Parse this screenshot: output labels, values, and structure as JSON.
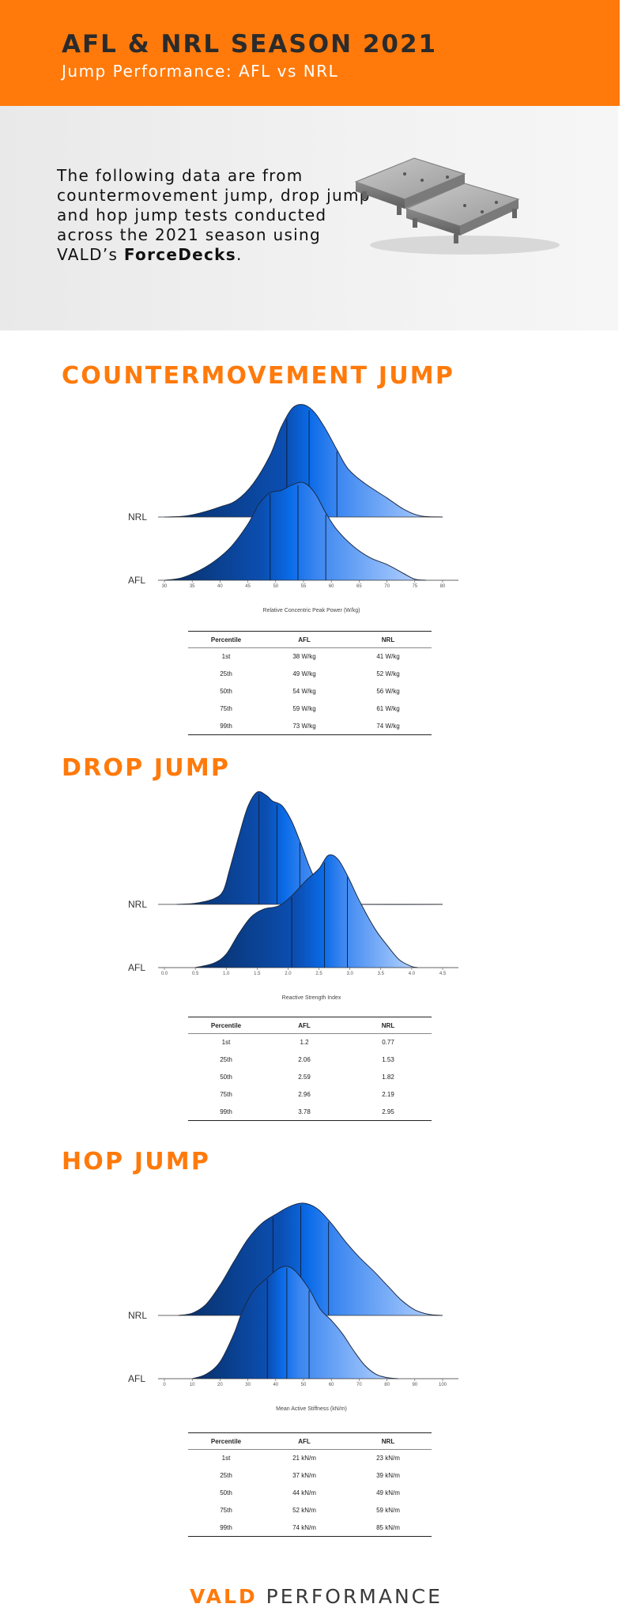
{
  "header": {
    "title": "AFL & NRL SEASON 2021",
    "subtitle": "Jump Performance: AFL vs NRL"
  },
  "intro": {
    "text": "The following data are from countermovement jump, drop jump and hop jump tests conducted across the 2021 season using VALD’s ",
    "brand": "ForceDecks",
    "end": ".",
    "image": "forcedecks-plates-image"
  },
  "colors": {
    "accent": "#ff7a0b",
    "dark_blue": "#0a2f66",
    "mid_blue": "#0a6be8",
    "light_blue": "#bcd6ff"
  },
  "table_headers": {
    "percentile": "Percentile",
    "afl": "AFL",
    "nrl": "NRL"
  },
  "sections": [
    {
      "title": "COUNTERMOVEMENT JUMP",
      "xlabel": "Relative Concentric Peak Power (W/kg)",
      "rows": [
        {
          "p": "1st",
          "afl": "38 W/kg",
          "nrl": "41 W/kg"
        },
        {
          "p": "25th",
          "afl": "49 W/kg",
          "nrl": "52 W/kg"
        },
        {
          "p": "50th",
          "afl": "54 W/kg",
          "nrl": "56 W/kg"
        },
        {
          "p": "75th",
          "afl": "59 W/kg",
          "nrl": "61 W/kg"
        },
        {
          "p": "99th",
          "afl": "73 W/kg",
          "nrl": "74 W/kg"
        }
      ]
    },
    {
      "title": "DROP JUMP",
      "xlabel": "Reactive Strength Index",
      "rows": [
        {
          "p": "1st",
          "afl": "1.2",
          "nrl": "0.77"
        },
        {
          "p": "25th",
          "afl": "2.06",
          "nrl": "1.53"
        },
        {
          "p": "50th",
          "afl": "2.59",
          "nrl": "1.82"
        },
        {
          "p": "75th",
          "afl": "2.96",
          "nrl": "2.19"
        },
        {
          "p": "99th",
          "afl": "3.78",
          "nrl": "2.95"
        }
      ]
    },
    {
      "title": "HOP JUMP",
      "xlabel": "Mean Active Stiffness (kN/m)",
      "rows": [
        {
          "p": "1st",
          "afl": "21 kN/m",
          "nrl": "23 kN/m"
        },
        {
          "p": "25th",
          "afl": "37 kN/m",
          "nrl": "39 kN/m"
        },
        {
          "p": "50th",
          "afl": "44 kN/m",
          "nrl": "49 kN/m"
        },
        {
          "p": "75th",
          "afl": "52 kN/m",
          "nrl": "59 kN/m"
        },
        {
          "p": "99th",
          "afl": "74 kN/m",
          "nrl": "85 kN/m"
        }
      ]
    }
  ],
  "footer": {
    "vald": "VALD",
    "performance": "PERFORMANCE"
  },
  "chart_data": [
    {
      "type": "ridgeline",
      "xlabel": "Relative Concentric Peak Power (W/kg)",
      "xlim": [
        30,
        80
      ],
      "xticks": [
        "30",
        "35",
        "40",
        "45",
        "50",
        "55",
        "60",
        "65",
        "70",
        "75",
        "80"
      ],
      "series": [
        {
          "name": "NRL",
          "range": [
            30,
            80
          ],
          "points": [
            [
              30,
              0
            ],
            [
              33,
              0.005
            ],
            [
              36,
              0.03
            ],
            [
              40,
              0.09
            ],
            [
              43,
              0.15
            ],
            [
              46,
              0.3
            ],
            [
              49,
              0.55
            ],
            [
              51,
              0.8
            ],
            [
              53,
              0.97
            ],
            [
              55,
              1
            ],
            [
              57,
              0.93
            ],
            [
              59,
              0.78
            ],
            [
              61,
              0.6
            ],
            [
              63,
              0.43
            ],
            [
              66,
              0.3
            ],
            [
              70,
              0.17
            ],
            [
              73,
              0.07
            ],
            [
              76,
              0.01
            ],
            [
              80,
              0
            ]
          ],
          "quartiles": [
            52,
            56,
            61
          ]
        },
        {
          "name": "AFL",
          "range": [
            30,
            80
          ],
          "points": [
            [
              30,
              0
            ],
            [
              33,
              0.02
            ],
            [
              36,
              0.08
            ],
            [
              39,
              0.17
            ],
            [
              42,
              0.3
            ],
            [
              45,
              0.5
            ],
            [
              47,
              0.68
            ],
            [
              49,
              0.78
            ],
            [
              51,
              0.8
            ],
            [
              53,
              0.85
            ],
            [
              55,
              0.87
            ],
            [
              57,
              0.78
            ],
            [
              59,
              0.6
            ],
            [
              61,
              0.45
            ],
            [
              64,
              0.3
            ],
            [
              67,
              0.2
            ],
            [
              70,
              0.14
            ],
            [
              73,
              0.06
            ],
            [
              75,
              0.01
            ],
            [
              77,
              0
            ]
          ],
          "quartiles": [
            49,
            54,
            59
          ]
        }
      ]
    },
    {
      "type": "ridgeline",
      "xlabel": "Reactive Strength Index",
      "xlim": [
        0,
        4.5
      ],
      "xticks": [
        "0.0",
        "0.5",
        "1.0",
        "1.5",
        "2.0",
        "2.5",
        "3.0",
        "3.5",
        "4.0",
        "4.5"
      ],
      "series": [
        {
          "name": "NRL",
          "range": [
            0,
            4.5
          ],
          "points": [
            [
              0.2,
              0
            ],
            [
              0.5,
              0.01
            ],
            [
              0.8,
              0.05
            ],
            [
              0.95,
              0.12
            ],
            [
              1.05,
              0.3
            ],
            [
              1.2,
              0.6
            ],
            [
              1.35,
              0.87
            ],
            [
              1.5,
              1
            ],
            [
              1.65,
              0.97
            ],
            [
              1.75,
              0.92
            ],
            [
              1.9,
              0.88
            ],
            [
              2.05,
              0.75
            ],
            [
              2.2,
              0.55
            ],
            [
              2.35,
              0.33
            ],
            [
              2.5,
              0.16
            ],
            [
              2.65,
              0.06
            ],
            [
              2.8,
              0.01
            ],
            [
              3.0,
              0
            ],
            [
              4.5,
              0
            ]
          ],
          "quartiles": [
            1.53,
            1.82,
            2.19
          ]
        },
        {
          "name": "AFL",
          "range": [
            0,
            4.5
          ],
          "points": [
            [
              0.5,
              0
            ],
            [
              0.8,
              0.04
            ],
            [
              1.0,
              0.12
            ],
            [
              1.2,
              0.3
            ],
            [
              1.4,
              0.45
            ],
            [
              1.6,
              0.52
            ],
            [
              1.85,
              0.55
            ],
            [
              2.06,
              0.64
            ],
            [
              2.3,
              0.78
            ],
            [
              2.5,
              0.88
            ],
            [
              2.65,
              1
            ],
            [
              2.8,
              0.97
            ],
            [
              2.96,
              0.82
            ],
            [
              3.15,
              0.6
            ],
            [
              3.4,
              0.35
            ],
            [
              3.6,
              0.2
            ],
            [
              3.8,
              0.07
            ],
            [
              4.0,
              0.01
            ],
            [
              4.1,
              0
            ]
          ],
          "quartiles": [
            2.06,
            2.59,
            2.96
          ]
        }
      ]
    },
    {
      "type": "ridgeline",
      "xlabel": "Mean Active Stiffness (kN/m)",
      "xlim": [
        0,
        100
      ],
      "xticks": [
        "0",
        "10",
        "20",
        "30",
        "40",
        "50",
        "60",
        "70",
        "80",
        "90",
        "100"
      ],
      "series": [
        {
          "name": "NRL",
          "range": [
            5,
            100
          ],
          "points": [
            [
              5,
              0
            ],
            [
              10,
              0.02
            ],
            [
              15,
              0.1
            ],
            [
              20,
              0.27
            ],
            [
              25,
              0.48
            ],
            [
              30,
              0.68
            ],
            [
              35,
              0.82
            ],
            [
              40,
              0.9
            ],
            [
              45,
              0.97
            ],
            [
              50,
              1
            ],
            [
              55,
              0.95
            ],
            [
              60,
              0.82
            ],
            [
              65,
              0.66
            ],
            [
              70,
              0.52
            ],
            [
              75,
              0.4
            ],
            [
              80,
              0.27
            ],
            [
              85,
              0.14
            ],
            [
              90,
              0.05
            ],
            [
              95,
              0.01
            ],
            [
              100,
              0
            ]
          ],
          "quartiles": [
            39,
            49,
            59
          ]
        },
        {
          "name": "AFL",
          "range": [
            0,
            100
          ],
          "points": [
            [
              10,
              0
            ],
            [
              15,
              0.04
            ],
            [
              20,
              0.15
            ],
            [
              25,
              0.4
            ],
            [
              28,
              0.6
            ],
            [
              32,
              0.78
            ],
            [
              37,
              0.9
            ],
            [
              41,
              0.98
            ],
            [
              44,
              1
            ],
            [
              47,
              0.96
            ],
            [
              52,
              0.8
            ],
            [
              56,
              0.62
            ],
            [
              60,
              0.52
            ],
            [
              64,
              0.4
            ],
            [
              68,
              0.25
            ],
            [
              72,
              0.12
            ],
            [
              76,
              0.04
            ],
            [
              80,
              0.01
            ],
            [
              84,
              0
            ]
          ],
          "quartiles": [
            37,
            44,
            52
          ]
        }
      ]
    }
  ]
}
